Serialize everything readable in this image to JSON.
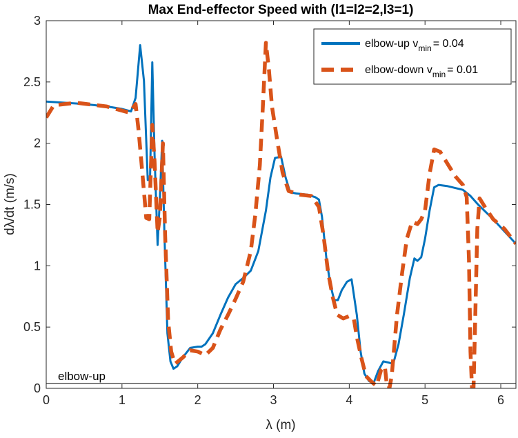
{
  "chart_data": {
    "type": "line",
    "title": "Max End-effector Speed with (l1=l2=2,l3=1)",
    "xlabel": "λ (m)",
    "ylabel": "dλ/dt  (m/s)",
    "xlim": [
      0,
      6.2
    ],
    "ylim": [
      0,
      3
    ],
    "xticks": [
      0,
      1,
      2,
      3,
      4,
      5,
      6
    ],
    "yticks": [
      0,
      0.5,
      1,
      1.5,
      2,
      2.5,
      3
    ],
    "xtick_labels": [
      "0",
      "1",
      "2",
      "3",
      "4",
      "5",
      "6"
    ],
    "ytick_labels": [
      "0",
      "0.5",
      "1",
      "1.5",
      "2",
      "2.5",
      "3"
    ],
    "grid": false,
    "legend_position": "top-right",
    "series": [
      {
        "name": "elbow-up v_min = 0.04",
        "color": "#0072BD",
        "style": "solid",
        "points": [
          [
            0,
            2.34
          ],
          [
            0.5,
            2.32
          ],
          [
            0.8,
            2.3
          ],
          [
            1.0,
            2.28
          ],
          [
            1.12,
            2.26
          ],
          [
            1.18,
            2.37
          ],
          [
            1.24,
            2.8
          ],
          [
            1.29,
            2.51
          ],
          [
            1.34,
            1.7
          ],
          [
            1.37,
            1.7
          ],
          [
            1.4,
            2.66
          ],
          [
            1.43,
            1.9
          ],
          [
            1.47,
            1.17
          ],
          [
            1.5,
            1.55
          ],
          [
            1.53,
            2.02
          ],
          [
            1.56,
            1.28
          ],
          [
            1.6,
            0.45
          ],
          [
            1.64,
            0.22
          ],
          [
            1.68,
            0.16
          ],
          [
            1.73,
            0.18
          ],
          [
            1.8,
            0.25
          ],
          [
            1.9,
            0.33
          ],
          [
            2.0,
            0.34
          ],
          [
            2.05,
            0.34
          ],
          [
            2.1,
            0.36
          ],
          [
            2.2,
            0.45
          ],
          [
            2.3,
            0.6
          ],
          [
            2.4,
            0.74
          ],
          [
            2.5,
            0.85
          ],
          [
            2.6,
            0.9
          ],
          [
            2.7,
            0.96
          ],
          [
            2.8,
            1.12
          ],
          [
            2.9,
            1.45
          ],
          [
            2.96,
            1.72
          ],
          [
            3.02,
            1.88
          ],
          [
            3.1,
            1.89
          ],
          [
            3.16,
            1.72
          ],
          [
            3.22,
            1.6
          ],
          [
            3.3,
            1.59
          ],
          [
            3.45,
            1.58
          ],
          [
            3.55,
            1.56
          ],
          [
            3.6,
            1.54
          ],
          [
            3.64,
            1.4
          ],
          [
            3.7,
            1.05
          ],
          [
            3.75,
            0.85
          ],
          [
            3.8,
            0.72
          ],
          [
            3.85,
            0.72
          ],
          [
            3.9,
            0.8
          ],
          [
            3.97,
            0.87
          ],
          [
            4.03,
            0.89
          ],
          [
            4.1,
            0.6
          ],
          [
            4.15,
            0.3
          ],
          [
            4.2,
            0.12
          ],
          [
            4.26,
            0.06
          ],
          [
            4.32,
            0.04
          ],
          [
            4.38,
            0.14
          ],
          [
            4.45,
            0.22
          ],
          [
            4.52,
            0.21
          ],
          [
            4.58,
            0.2
          ],
          [
            4.65,
            0.36
          ],
          [
            4.72,
            0.6
          ],
          [
            4.8,
            0.9
          ],
          [
            4.86,
            1.06
          ],
          [
            4.9,
            1.04
          ],
          [
            4.95,
            1.07
          ],
          [
            5.0,
            1.22
          ],
          [
            5.06,
            1.45
          ],
          [
            5.12,
            1.64
          ],
          [
            5.18,
            1.66
          ],
          [
            5.3,
            1.65
          ],
          [
            5.5,
            1.62
          ],
          [
            5.6,
            1.57
          ],
          [
            5.7,
            1.5
          ],
          [
            5.9,
            1.38
          ],
          [
            6.05,
            1.28
          ],
          [
            6.2,
            1.18
          ]
        ]
      },
      {
        "name": "elbow-down v_min = 0.01",
        "color": "#D95319",
        "style": "dashed",
        "points": [
          [
            0,
            2.21
          ],
          [
            0.1,
            2.31
          ],
          [
            0.4,
            2.33
          ],
          [
            0.8,
            2.3
          ],
          [
            1.1,
            2.25
          ],
          [
            1.18,
            2.32
          ],
          [
            1.22,
            2.1
          ],
          [
            1.27,
            1.75
          ],
          [
            1.32,
            1.39
          ],
          [
            1.36,
            1.38
          ],
          [
            1.4,
            2.15
          ],
          [
            1.43,
            1.85
          ],
          [
            1.47,
            1.27
          ],
          [
            1.5,
            1.4
          ],
          [
            1.54,
            2.0
          ],
          [
            1.57,
            1.25
          ],
          [
            1.61,
            0.55
          ],
          [
            1.65,
            0.3
          ],
          [
            1.7,
            0.2
          ],
          [
            1.8,
            0.25
          ],
          [
            1.9,
            0.31
          ],
          [
            2.0,
            0.3
          ],
          [
            2.1,
            0.27
          ],
          [
            2.2,
            0.33
          ],
          [
            2.3,
            0.48
          ],
          [
            2.4,
            0.6
          ],
          [
            2.5,
            0.73
          ],
          [
            2.6,
            0.87
          ],
          [
            2.7,
            1.12
          ],
          [
            2.76,
            1.42
          ],
          [
            2.82,
            1.82
          ],
          [
            2.86,
            2.3
          ],
          [
            2.9,
            2.82
          ],
          [
            2.94,
            2.6
          ],
          [
            2.98,
            2.3
          ],
          [
            3.05,
            2.02
          ],
          [
            3.12,
            1.76
          ],
          [
            3.2,
            1.61
          ],
          [
            3.35,
            1.58
          ],
          [
            3.5,
            1.57
          ],
          [
            3.6,
            1.48
          ],
          [
            3.66,
            1.25
          ],
          [
            3.72,
            0.95
          ],
          [
            3.78,
            0.75
          ],
          [
            3.84,
            0.6
          ],
          [
            3.92,
            0.57
          ],
          [
            4.0,
            0.59
          ],
          [
            4.06,
            0.57
          ],
          [
            4.1,
            0.42
          ],
          [
            4.16,
            0.25
          ],
          [
            4.22,
            0.1
          ],
          [
            4.3,
            0.05
          ],
          [
            4.36,
            0.02
          ],
          [
            4.42,
            0.15
          ],
          [
            4.47,
            0.18
          ],
          [
            4.5,
            0.0
          ],
          [
            4.53,
            0.0
          ],
          [
            4.56,
            0.1
          ],
          [
            4.63,
            0.6
          ],
          [
            4.7,
            0.95
          ],
          [
            4.76,
            1.22
          ],
          [
            4.83,
            1.36
          ],
          [
            4.9,
            1.34
          ],
          [
            4.95,
            1.38
          ],
          [
            5.0,
            1.45
          ],
          [
            5.06,
            1.75
          ],
          [
            5.12,
            1.95
          ],
          [
            5.2,
            1.93
          ],
          [
            5.3,
            1.83
          ],
          [
            5.4,
            1.73
          ],
          [
            5.5,
            1.66
          ],
          [
            5.55,
            1.56
          ],
          [
            5.58,
            1.05
          ],
          [
            5.6,
            0.3
          ],
          [
            5.62,
            0.0
          ],
          [
            5.64,
            0.0
          ],
          [
            5.66,
            0.5
          ],
          [
            5.69,
            1.3
          ],
          [
            5.72,
            1.55
          ],
          [
            5.8,
            1.47
          ],
          [
            5.9,
            1.38
          ],
          [
            6.05,
            1.3
          ],
          [
            6.2,
            1.18
          ]
        ]
      }
    ],
    "reference_line": {
      "y": 0.04,
      "label": "elbow-up",
      "color": "#000000"
    },
    "legend": [
      {
        "prefix": "elbow-up v",
        "sub": "min",
        "suffix": "= 0.04"
      },
      {
        "prefix": "elbow-down v",
        "sub": "min",
        "suffix": "= 0.01"
      }
    ]
  }
}
